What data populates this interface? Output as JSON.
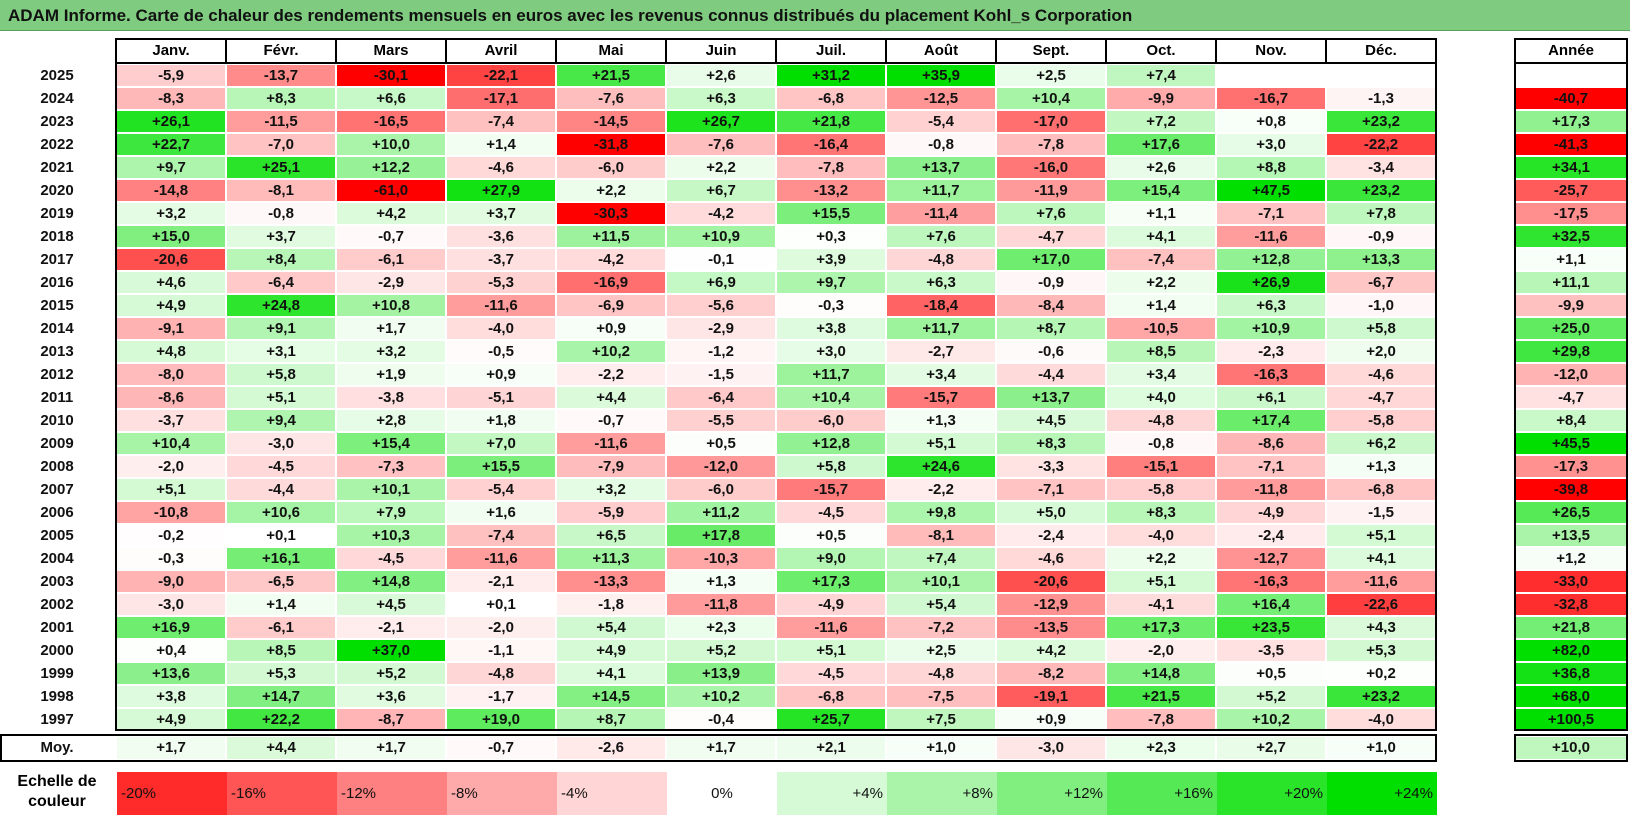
{
  "title": "ADAM Informe. Carte de chaleur des rendements mensuels en euros avec les revenus connus distribués du placement Kohl_s Corporation",
  "chart_data": {
    "type": "heatmap",
    "months": [
      "Janv.",
      "Févr.",
      "Mars",
      "Avril",
      "Mai",
      "Juin",
      "Juil.",
      "Août",
      "Sept.",
      "Oct.",
      "Nov.",
      "Déc."
    ],
    "year_header": "Année",
    "rows": [
      {
        "year": "2025",
        "values": [
          "-5,9",
          "-13,7",
          "-30,1",
          "-22,1",
          "+21,5",
          "+2,6",
          "+31,2",
          "+35,9",
          "+2,5",
          "+7,4",
          "",
          ""
        ],
        "annual": ""
      },
      {
        "year": "2024",
        "values": [
          "-8,3",
          "+8,3",
          "+6,6",
          "-17,1",
          "-7,6",
          "+6,3",
          "-6,8",
          "-12,5",
          "+10,4",
          "-9,9",
          "-16,7",
          "-1,3"
        ],
        "annual": "-40,7"
      },
      {
        "year": "2023",
        "values": [
          "+26,1",
          "-11,5",
          "-16,5",
          "-7,4",
          "-14,5",
          "+26,7",
          "+21,8",
          "-5,4",
          "-17,0",
          "+7,2",
          "+0,8",
          "+23,2"
        ],
        "annual": "+17,3"
      },
      {
        "year": "2022",
        "values": [
          "+22,7",
          "-7,0",
          "+10,0",
          "+1,4",
          "-31,8",
          "-7,6",
          "-16,4",
          "-0,8",
          "-7,8",
          "+17,6",
          "+3,0",
          "-22,2"
        ],
        "annual": "-41,3"
      },
      {
        "year": "2021",
        "values": [
          "+9,7",
          "+25,1",
          "+12,2",
          "-4,6",
          "-6,0",
          "+2,2",
          "-7,8",
          "+13,7",
          "-16,0",
          "+2,6",
          "+8,8",
          "-3,4"
        ],
        "annual": "+34,1"
      },
      {
        "year": "2020",
        "values": [
          "-14,8",
          "-8,1",
          "-61,0",
          "+27,9",
          "+2,2",
          "+6,7",
          "-13,2",
          "+11,7",
          "-11,9",
          "+15,4",
          "+47,5",
          "+23,2"
        ],
        "annual": "-25,7"
      },
      {
        "year": "2019",
        "values": [
          "+3,2",
          "-0,8",
          "+4,2",
          "+3,7",
          "-30,3",
          "-4,2",
          "+15,5",
          "-11,4",
          "+7,6",
          "+1,1",
          "-7,1",
          "+7,8"
        ],
        "annual": "-17,5"
      },
      {
        "year": "2018",
        "values": [
          "+15,0",
          "+3,7",
          "-0,7",
          "-3,6",
          "+11,5",
          "+10,9",
          "+0,3",
          "+7,6",
          "-4,7",
          "+4,1",
          "-11,6",
          "-0,9"
        ],
        "annual": "+32,5"
      },
      {
        "year": "2017",
        "values": [
          "-20,6",
          "+8,4",
          "-6,1",
          "-3,7",
          "-4,2",
          "-0,1",
          "+3,9",
          "-4,8",
          "+17,0",
          "-7,4",
          "+12,8",
          "+13,3"
        ],
        "annual": "+1,1"
      },
      {
        "year": "2016",
        "values": [
          "+4,6",
          "-6,4",
          "-2,9",
          "-5,3",
          "-16,9",
          "+6,9",
          "+9,7",
          "+6,3",
          "-0,9",
          "+2,2",
          "+26,9",
          "-6,7"
        ],
        "annual": "+11,1"
      },
      {
        "year": "2015",
        "values": [
          "+4,9",
          "+24,8",
          "+10,8",
          "-11,6",
          "-6,9",
          "-5,6",
          "-0,3",
          "-18,4",
          "-8,4",
          "+1,4",
          "+6,3",
          "-1,0"
        ],
        "annual": "-9,9"
      },
      {
        "year": "2014",
        "values": [
          "-9,1",
          "+9,1",
          "+1,7",
          "-4,0",
          "+0,9",
          "-2,9",
          "+3,8",
          "+11,7",
          "+8,7",
          "-10,5",
          "+10,9",
          "+5,8"
        ],
        "annual": "+25,0"
      },
      {
        "year": "2013",
        "values": [
          "+4,8",
          "+3,1",
          "+3,2",
          "-0,5",
          "+10,2",
          "-1,2",
          "+3,0",
          "-2,7",
          "-0,6",
          "+8,5",
          "-2,3",
          "+2,0"
        ],
        "annual": "+29,8"
      },
      {
        "year": "2012",
        "values": [
          "-8,0",
          "+5,8",
          "+1,9",
          "+0,9",
          "-2,2",
          "-1,5",
          "+11,7",
          "+3,4",
          "-4,4",
          "+3,4",
          "-16,3",
          "-4,6"
        ],
        "annual": "-12,0"
      },
      {
        "year": "2011",
        "values": [
          "-8,6",
          "+5,1",
          "-3,8",
          "-5,1",
          "+4,4",
          "-6,4",
          "+10,4",
          "-15,7",
          "+13,7",
          "+4,0",
          "+6,1",
          "-4,7"
        ],
        "annual": "-4,7"
      },
      {
        "year": "2010",
        "values": [
          "-3,7",
          "+9,4",
          "+2,8",
          "+1,8",
          "-0,7",
          "-5,5",
          "-6,0",
          "+1,3",
          "+4,5",
          "-4,8",
          "+17,4",
          "-5,8"
        ],
        "annual": "+8,4"
      },
      {
        "year": "2009",
        "values": [
          "+10,4",
          "-3,0",
          "+15,4",
          "+7,0",
          "-11,6",
          "+0,5",
          "+12,8",
          "+5,1",
          "+8,3",
          "-0,8",
          "-8,6",
          "+6,2"
        ],
        "annual": "+45,5"
      },
      {
        "year": "2008",
        "values": [
          "-2,0",
          "-4,5",
          "-7,3",
          "+15,5",
          "-7,9",
          "-12,0",
          "+5,8",
          "+24,6",
          "-3,3",
          "-15,1",
          "-7,1",
          "+1,3"
        ],
        "annual": "-17,3"
      },
      {
        "year": "2007",
        "values": [
          "+5,1",
          "-4,4",
          "+10,1",
          "-5,4",
          "+3,2",
          "-6,0",
          "-15,7",
          "-2,2",
          "-7,1",
          "-5,8",
          "-11,8",
          "-6,8"
        ],
        "annual": "-39,8"
      },
      {
        "year": "2006",
        "values": [
          "-10,8",
          "+10,6",
          "+7,9",
          "+1,6",
          "-5,9",
          "+11,2",
          "-4,5",
          "+9,8",
          "+5,0",
          "+8,3",
          "-4,9",
          "-1,5"
        ],
        "annual": "+26,5"
      },
      {
        "year": "2005",
        "values": [
          "-0,2",
          "+0,1",
          "+10,3",
          "-7,4",
          "+6,5",
          "+17,8",
          "+0,5",
          "-8,1",
          "-2,4",
          "-4,0",
          "-2,4",
          "+5,1"
        ],
        "annual": "+13,5"
      },
      {
        "year": "2004",
        "values": [
          "-0,3",
          "+16,1",
          "-4,5",
          "-11,6",
          "+11,3",
          "-10,3",
          "+9,0",
          "+7,4",
          "-4,6",
          "+2,2",
          "-12,7",
          "+4,1"
        ],
        "annual": "+1,2"
      },
      {
        "year": "2003",
        "values": [
          "-9,0",
          "-6,5",
          "+14,8",
          "-2,1",
          "-13,3",
          "+1,3",
          "+17,3",
          "+10,1",
          "-20,6",
          "+5,1",
          "-16,3",
          "-11,6"
        ],
        "annual": "-33,0"
      },
      {
        "year": "2002",
        "values": [
          "-3,0",
          "+1,4",
          "+4,5",
          "+0,1",
          "-1,8",
          "-11,8",
          "-4,9",
          "+5,4",
          "-12,9",
          "-4,1",
          "+16,4",
          "-22,6"
        ],
        "annual": "-32,8"
      },
      {
        "year": "2001",
        "values": [
          "+16,9",
          "-6,1",
          "-2,1",
          "-2,0",
          "+5,4",
          "+2,3",
          "-11,6",
          "-7,2",
          "-13,5",
          "+17,3",
          "+23,5",
          "+4,3"
        ],
        "annual": "+21,8"
      },
      {
        "year": "2000",
        "values": [
          "+0,4",
          "+8,5",
          "+37,0",
          "-1,1",
          "+4,9",
          "+5,2",
          "+5,1",
          "+2,5",
          "+4,2",
          "-2,0",
          "-3,5",
          "+5,3"
        ],
        "annual": "+82,0"
      },
      {
        "year": "1999",
        "values": [
          "+13,6",
          "+5,3",
          "+5,2",
          "-4,8",
          "+4,1",
          "+13,9",
          "-4,5",
          "-4,8",
          "-8,2",
          "+14,8",
          "+0,5",
          "+0,2"
        ],
        "annual": "+36,8"
      },
      {
        "year": "1998",
        "values": [
          "+3,8",
          "+14,7",
          "+3,6",
          "-1,7",
          "+14,5",
          "+10,2",
          "-6,8",
          "-7,5",
          "-19,1",
          "+21,5",
          "+5,2",
          "+23,2"
        ],
        "annual": "+68,0"
      },
      {
        "year": "1997",
        "values": [
          "+4,9",
          "+22,2",
          "-8,7",
          "+19,0",
          "+8,7",
          "-0,4",
          "+25,7",
          "+7,5",
          "+0,9",
          "-7,8",
          "+10,2",
          "-4,0"
        ],
        "annual": "+100,5"
      }
    ],
    "average": {
      "label": "Moy.",
      "values": [
        "+1,7",
        "+4,4",
        "+1,7",
        "-0,7",
        "-2,6",
        "+1,7",
        "+2,1",
        "+1,0",
        "-3,0",
        "+2,3",
        "+2,7",
        "+1,0"
      ],
      "annual": "+10,0"
    },
    "legend": {
      "title_line1": "Echelle de",
      "title_line2": "couleur",
      "steps": [
        "-20%",
        "-16%",
        "-12%",
        "-8%",
        "-4%",
        "0%",
        "+4%",
        "+8%",
        "+12%",
        "+16%",
        "+20%",
        "+24%"
      ]
    },
    "colors": {
      "negative": "#ff0000",
      "positive": "#00e000",
      "neutral": "#ffffff",
      "title_bar": "#7fcb7f"
    }
  }
}
